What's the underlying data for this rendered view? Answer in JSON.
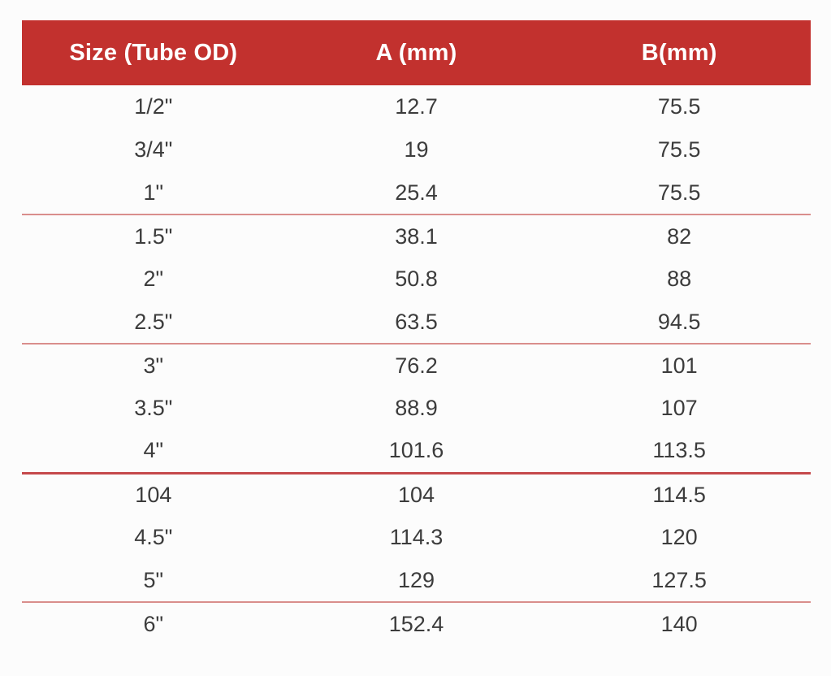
{
  "page": {
    "background": "#fcfcfc"
  },
  "table": {
    "columns": [
      {
        "label": "Size (Tube OD)"
      },
      {
        "label": "A (mm)"
      },
      {
        "label": "B(mm)"
      }
    ],
    "rows": [
      {
        "size": "1/2\"",
        "a": "12.7",
        "b": "75.5"
      },
      {
        "size": "3/4\"",
        "a": "19",
        "b": "75.5"
      },
      {
        "size": "1\"",
        "a": "25.4",
        "b": "75.5"
      },
      {
        "size": "1.5\"",
        "a": "38.1",
        "b": "82"
      },
      {
        "size": "2\"",
        "a": "50.8",
        "b": "88"
      },
      {
        "size": "2.5\"",
        "a": "63.5",
        "b": "94.5"
      },
      {
        "size": "3\"",
        "a": "76.2",
        "b": "101"
      },
      {
        "size": "3.5\"",
        "a": "88.9",
        "b": "107"
      },
      {
        "size": "4\"",
        "a": "101.6",
        "b": "113.5"
      },
      {
        "size": "104",
        "a": "104",
        "b": "114.5"
      },
      {
        "size": "4.5\"",
        "a": "114.3",
        "b": "120"
      },
      {
        "size": "5\"",
        "a": "129",
        "b": "127.5"
      },
      {
        "size": "6\"",
        "a": "152.4",
        "b": "140"
      }
    ],
    "divider_after": [
      2,
      5,
      11
    ],
    "strong_divider_after": [
      8
    ],
    "colors": {
      "header_bg": "#c2312e",
      "header_text": "#ffffff",
      "cell_text": "#3c3c3c",
      "divider": "#d98e8c",
      "divider_strong": "#c5494b"
    }
  }
}
